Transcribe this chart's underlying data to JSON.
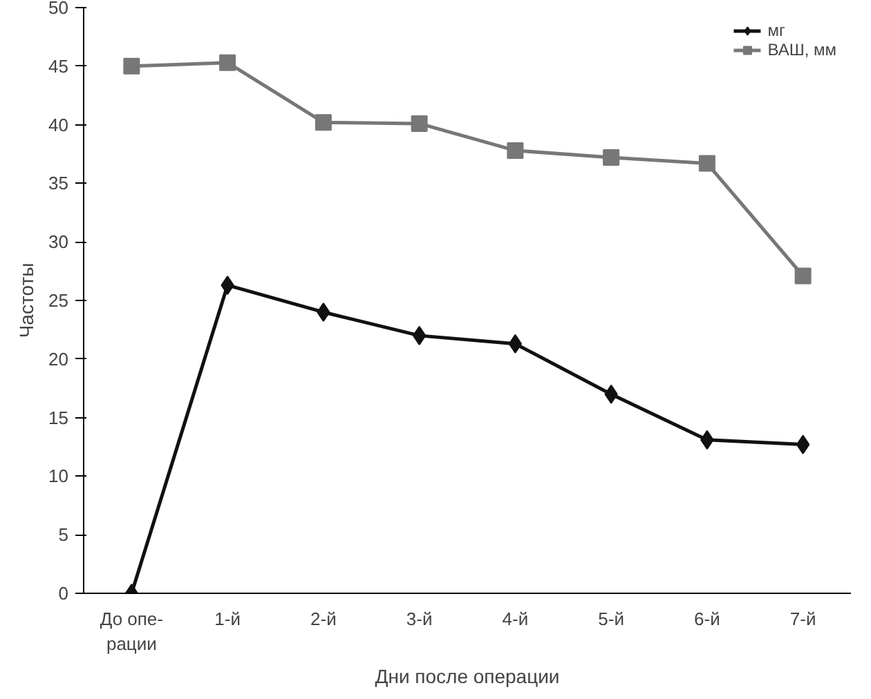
{
  "chart_data": {
    "type": "line",
    "xlabel": "Дни после операции",
    "ylabel": "Частоты",
    "categories": [
      "До опе-\nрации",
      "1-й",
      "2-й",
      "3-й",
      "4-й",
      "5-й",
      "6-й",
      "7-й"
    ],
    "series": [
      {
        "name": "мг",
        "color": "#111111",
        "marker": "diamond",
        "values": [
          0,
          26.3,
          24.0,
          22.0,
          21.3,
          17.0,
          13.1,
          12.7
        ]
      },
      {
        "name": "ВАШ, мм",
        "color": "#777777",
        "marker": "square",
        "values": [
          45.0,
          45.3,
          40.2,
          40.1,
          37.8,
          37.2,
          36.7,
          27.1
        ]
      }
    ],
    "ylim": [
      0,
      50
    ],
    "yticks": [
      0,
      5,
      10,
      15,
      20,
      25,
      30,
      35,
      40,
      45,
      50
    ],
    "grid": false,
    "legend": "top right",
    "line_style": "solid"
  }
}
